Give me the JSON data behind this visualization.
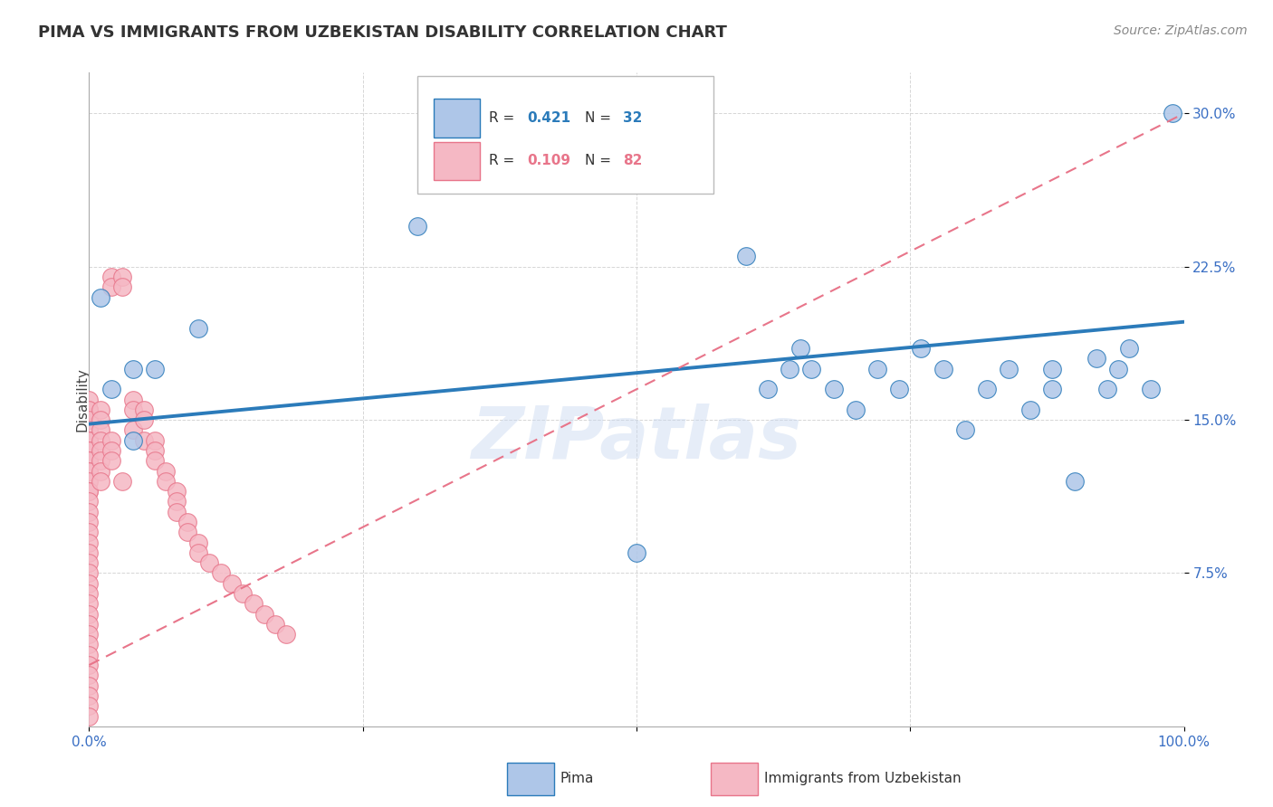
{
  "title": "PIMA VS IMMIGRANTS FROM UZBEKISTAN DISABILITY CORRELATION CHART",
  "source": "Source: ZipAtlas.com",
  "ylabel": "Disability",
  "xlim": [
    0.0,
    1.0
  ],
  "ylim": [
    0.0,
    0.32
  ],
  "xtick_labels": [
    "0.0%",
    "",
    "",
    "",
    "100.0%"
  ],
  "ytick_labels": [
    "7.5%",
    "15.0%",
    "22.5%",
    "30.0%"
  ],
  "pima_R": 0.421,
  "pima_N": 32,
  "uzbek_R": 0.109,
  "uzbek_N": 82,
  "pima_color": "#aec6e8",
  "uzbek_color": "#f5b8c4",
  "pima_line_color": "#2b7bba",
  "uzbek_line_color": "#e8758a",
  "watermark": "ZIPatlas",
  "pima_x": [
    0.01,
    0.02,
    0.04,
    0.04,
    0.06,
    0.1,
    0.3,
    0.5,
    0.6,
    0.62,
    0.64,
    0.65,
    0.66,
    0.68,
    0.7,
    0.72,
    0.74,
    0.76,
    0.78,
    0.8,
    0.82,
    0.84,
    0.86,
    0.88,
    0.88,
    0.9,
    0.92,
    0.93,
    0.94,
    0.95,
    0.97,
    0.99
  ],
  "pima_y": [
    0.21,
    0.165,
    0.175,
    0.14,
    0.175,
    0.195,
    0.245,
    0.085,
    0.23,
    0.165,
    0.175,
    0.185,
    0.175,
    0.165,
    0.155,
    0.175,
    0.165,
    0.185,
    0.175,
    0.145,
    0.165,
    0.175,
    0.155,
    0.165,
    0.175,
    0.12,
    0.18,
    0.165,
    0.175,
    0.185,
    0.165,
    0.3
  ],
  "uzbek_x": [
    0.0,
    0.0,
    0.0,
    0.0,
    0.0,
    0.0,
    0.0,
    0.0,
    0.0,
    0.0,
    0.0,
    0.0,
    0.0,
    0.0,
    0.0,
    0.0,
    0.0,
    0.0,
    0.0,
    0.0,
    0.0,
    0.0,
    0.0,
    0.0,
    0.0,
    0.0,
    0.0,
    0.0,
    0.0,
    0.0,
    0.0,
    0.0,
    0.0,
    0.0,
    0.0,
    0.0,
    0.0,
    0.0,
    0.0,
    0.0,
    0.01,
    0.01,
    0.01,
    0.01,
    0.01,
    0.01,
    0.01,
    0.01,
    0.02,
    0.02,
    0.02,
    0.02,
    0.02,
    0.03,
    0.03,
    0.03,
    0.04,
    0.04,
    0.04,
    0.05,
    0.05,
    0.05,
    0.06,
    0.06,
    0.06,
    0.07,
    0.07,
    0.08,
    0.08,
    0.08,
    0.09,
    0.09,
    0.1,
    0.1,
    0.11,
    0.12,
    0.13,
    0.14,
    0.15,
    0.16,
    0.17,
    0.18
  ],
  "uzbek_y": [
    0.155,
    0.155,
    0.16,
    0.155,
    0.15,
    0.145,
    0.14,
    0.14,
    0.14,
    0.135,
    0.135,
    0.13,
    0.13,
    0.125,
    0.125,
    0.12,
    0.115,
    0.115,
    0.11,
    0.105,
    0.1,
    0.095,
    0.09,
    0.085,
    0.08,
    0.075,
    0.07,
    0.065,
    0.06,
    0.055,
    0.05,
    0.045,
    0.04,
    0.035,
    0.03,
    0.025,
    0.02,
    0.015,
    0.01,
    0.005,
    0.155,
    0.15,
    0.145,
    0.14,
    0.135,
    0.13,
    0.125,
    0.12,
    0.22,
    0.215,
    0.14,
    0.135,
    0.13,
    0.22,
    0.215,
    0.12,
    0.16,
    0.155,
    0.145,
    0.155,
    0.15,
    0.14,
    0.14,
    0.135,
    0.13,
    0.125,
    0.12,
    0.115,
    0.11,
    0.105,
    0.1,
    0.095,
    0.09,
    0.085,
    0.08,
    0.075,
    0.07,
    0.065,
    0.06,
    0.055,
    0.05,
    0.045
  ],
  "pima_line_x0": 0.0,
  "pima_line_x1": 1.0,
  "pima_line_y0": 0.148,
  "pima_line_y1": 0.198,
  "uzbek_line_x0": 0.0,
  "uzbek_line_x1": 1.0,
  "uzbek_line_y0": 0.03,
  "uzbek_line_y1": 0.3
}
